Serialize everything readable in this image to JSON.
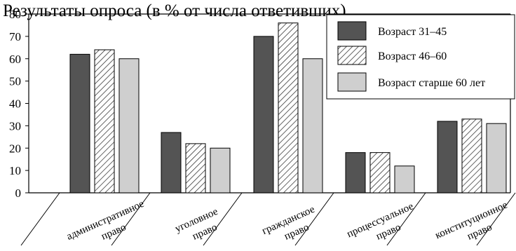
{
  "chart_data": {
    "type": "bar",
    "title": "Результаты опроса (в % от числа ответивших)",
    "xlabel": "",
    "ylabel": "",
    "ylim": [
      0,
      80
    ],
    "yticks": [
      0,
      10,
      20,
      30,
      40,
      50,
      60,
      70,
      80
    ],
    "grid": false,
    "legend_position": "top-right",
    "categories": [
      [
        "административное",
        "право"
      ],
      [
        "уголовное",
        "право"
      ],
      [
        "гражданское",
        "право"
      ],
      [
        "процессуальное",
        "право"
      ],
      [
        "конституционное",
        "право"
      ]
    ],
    "series": [
      {
        "name": "Возраст 31–45",
        "values": [
          62,
          27,
          70,
          18,
          32
        ],
        "fill": "solid-dark",
        "color": "#545454"
      },
      {
        "name": "Возраст 46–60",
        "values": [
          64,
          22,
          76,
          18,
          33
        ],
        "fill": "hatched",
        "color": "#ffffff"
      },
      {
        "name": "Возраст старше 60 лет",
        "values": [
          60,
          20,
          60,
          12,
          31
        ],
        "fill": "solid-light",
        "color": "#cfcfcf"
      }
    ]
  }
}
